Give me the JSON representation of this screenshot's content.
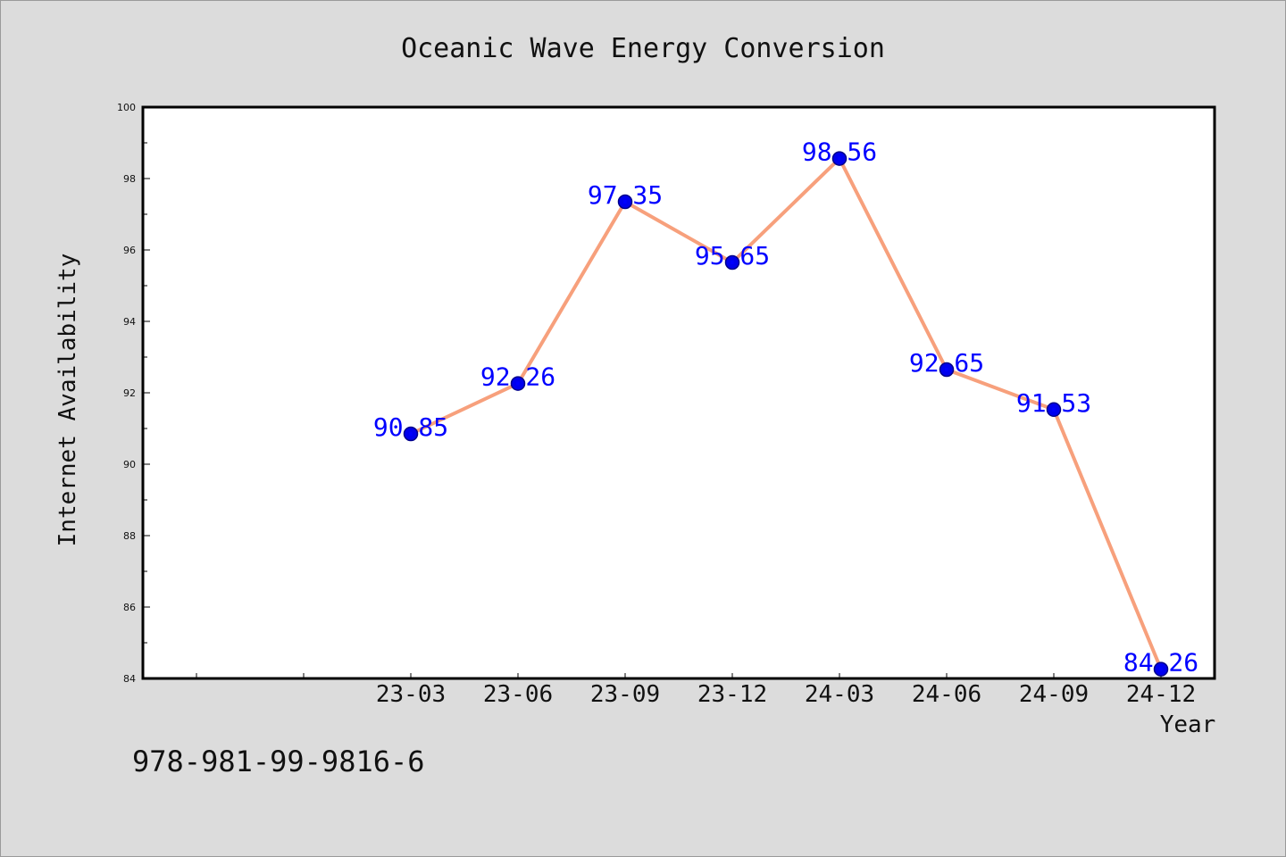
{
  "chart_data": {
    "type": "line",
    "title": "Oceanic Wave Energy Conversion",
    "xlabel": "Year",
    "ylabel": "Internet Availability",
    "categories": [
      "23-03",
      "23-06",
      "23-09",
      "23-12",
      "24-03",
      "24-06",
      "24-09",
      "24-12"
    ],
    "values": [
      90.85,
      92.26,
      97.35,
      95.65,
      98.56,
      92.65,
      91.53,
      84.26
    ],
    "value_labels": [
      "90.85",
      "92.26",
      "97.35",
      "95.65",
      "98.56",
      "92.65",
      "91.53",
      "84.26"
    ],
    "ylim": [
      84,
      100
    ],
    "yticks": [
      "84",
      "86",
      "88",
      "90",
      "92",
      "94",
      "96",
      "98",
      "100"
    ],
    "grid": false,
    "legend": "none",
    "colors": {
      "line": "#f7a07c",
      "marker": "#0000ee",
      "marker_edge": "#00008b",
      "data_label": "#0000ff",
      "plot_bg": "#ffffff",
      "figure_bg": "#dcdcdc"
    }
  },
  "footer_text": "978-981-99-9816-6"
}
